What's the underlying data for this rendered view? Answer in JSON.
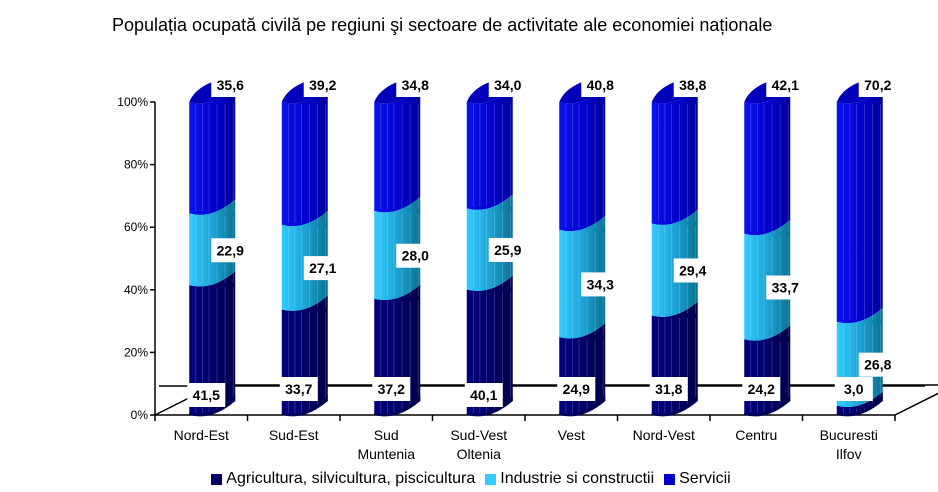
{
  "chart_data": {
    "type": "bar",
    "subtype": "stacked-100-percent-3d-cylinder",
    "title": "Populația ocupată civilă pe regiuni şi sectoare de activitate ale economiei naționale",
    "xlabel": "",
    "ylabel": "",
    "ylim": [
      0,
      100
    ],
    "yticks": [
      "0%",
      "20%",
      "40%",
      "60%",
      "80%",
      "100%"
    ],
    "categories": [
      [
        "Nord-Est"
      ],
      [
        "Sud-Est"
      ],
      [
        "Sud",
        "Muntenia"
      ],
      [
        "Sud-Vest",
        "Oltenia"
      ],
      [
        "Vest"
      ],
      [
        "Nord-Vest"
      ],
      [
        "Centru"
      ],
      [
        "Bucuresti",
        "Ilfov"
      ]
    ],
    "series": [
      {
        "name": "Agricultura, silvicultura, piscicultura",
        "color": "#000066",
        "values": [
          41.5,
          33.7,
          37.2,
          40.1,
          24.9,
          31.8,
          24.2,
          3.0
        ],
        "labels": [
          "41,5",
          "33,7",
          "37,2",
          "40,1",
          "24,9",
          "31,8",
          "24,2",
          "3,0"
        ]
      },
      {
        "name": "Industrie si constructii",
        "color": "#33CCFF",
        "values": [
          22.9,
          27.1,
          28.0,
          25.9,
          34.3,
          29.4,
          33.7,
          26.8
        ],
        "labels": [
          "22,9",
          "27,1",
          "28,0",
          "25,9",
          "34,3",
          "29,4",
          "33,7",
          "26,8"
        ]
      },
      {
        "name": "Servicii",
        "color": "#0000CC",
        "values": [
          35.6,
          39.2,
          34.8,
          34.0,
          40.8,
          38.8,
          42.1,
          70.2
        ],
        "labels": [
          "35,6",
          "39,2",
          "34,8",
          "34,0",
          "40,8",
          "38,8",
          "42,1",
          "70,2"
        ]
      }
    ],
    "legend_position": "bottom",
    "grid": false
  }
}
